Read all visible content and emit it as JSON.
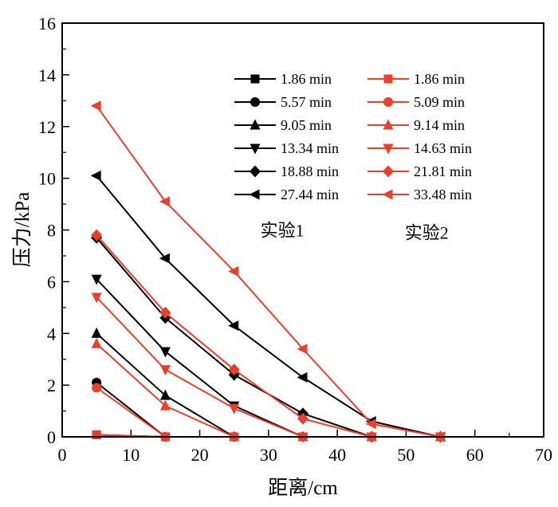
{
  "chart_data": {
    "type": "line",
    "xlabel": "距离/cm",
    "ylabel": "压力/kPa",
    "xlim": [
      0,
      70
    ],
    "ylim": [
      0,
      16
    ],
    "xticks": [
      0,
      10,
      20,
      30,
      40,
      50,
      60,
      70
    ],
    "yticks": [
      0,
      2,
      4,
      6,
      8,
      10,
      12,
      14,
      16
    ],
    "grid": false,
    "legend_position": "top-right",
    "colors": {
      "exp1": "#000000",
      "exp2": "#e8402a"
    },
    "group_labels": [
      {
        "text": "实验1",
        "x": 32,
        "y": 8.0
      },
      {
        "text": "实验2",
        "x": 53,
        "y": 7.9
      }
    ],
    "series": [
      {
        "name": "1.86 min",
        "group": "exp1",
        "marker": "square",
        "x": [
          5,
          15,
          25,
          35,
          45,
          55
        ],
        "y": [
          0.08,
          0,
          0,
          0,
          0,
          0
        ]
      },
      {
        "name": "5.57 min",
        "group": "exp1",
        "marker": "circle",
        "x": [
          5,
          15,
          25,
          35,
          45,
          55
        ],
        "y": [
          2.1,
          0,
          0,
          0,
          0,
          0
        ]
      },
      {
        "name": "9.05 min",
        "group": "exp1",
        "marker": "triangle-up",
        "x": [
          5,
          15,
          25,
          35,
          45,
          55
        ],
        "y": [
          4.0,
          1.6,
          0,
          0,
          0,
          0
        ]
      },
      {
        "name": "13.34 min",
        "group": "exp1",
        "marker": "triangle-down",
        "x": [
          5,
          15,
          25,
          35,
          45,
          55
        ],
        "y": [
          6.1,
          3.3,
          1.2,
          0,
          0,
          0
        ]
      },
      {
        "name": "18.88 min",
        "group": "exp1",
        "marker": "diamond",
        "x": [
          5,
          15,
          25,
          35,
          45,
          55
        ],
        "y": [
          7.7,
          4.6,
          2.4,
          0.9,
          0,
          0
        ]
      },
      {
        "name": "27.44 min",
        "group": "exp1",
        "marker": "triangle-left",
        "x": [
          5,
          15,
          25,
          35,
          45,
          55
        ],
        "y": [
          10.1,
          6.9,
          4.3,
          2.3,
          0.6,
          0
        ]
      },
      {
        "name": "1.86 min",
        "group": "exp2",
        "marker": "square",
        "x": [
          5,
          15,
          25,
          35,
          45,
          55
        ],
        "y": [
          0.08,
          0,
          0,
          0,
          0,
          0
        ]
      },
      {
        "name": "5.09 min",
        "group": "exp2",
        "marker": "circle",
        "x": [
          5,
          15,
          25,
          35,
          45,
          55
        ],
        "y": [
          1.9,
          0,
          0,
          0,
          0,
          0
        ]
      },
      {
        "name": "9.14 min",
        "group": "exp2",
        "marker": "triangle-up",
        "x": [
          5,
          15,
          25,
          35,
          45,
          55
        ],
        "y": [
          3.6,
          1.2,
          0,
          0,
          0,
          0
        ]
      },
      {
        "name": "14.63 min",
        "group": "exp2",
        "marker": "triangle-down",
        "x": [
          5,
          15,
          25,
          35,
          45,
          55
        ],
        "y": [
          5.4,
          2.6,
          1.1,
          0,
          0,
          0
        ]
      },
      {
        "name": "21.81 min",
        "group": "exp2",
        "marker": "diamond",
        "x": [
          5,
          15,
          25,
          35,
          45,
          55
        ],
        "y": [
          7.8,
          4.8,
          2.6,
          0.7,
          0,
          0
        ]
      },
      {
        "name": "33.48 min",
        "group": "exp2",
        "marker": "triangle-left",
        "x": [
          5,
          15,
          25,
          35,
          45,
          55
        ],
        "y": [
          12.8,
          9.1,
          6.4,
          3.4,
          0.5,
          0
        ]
      }
    ]
  }
}
